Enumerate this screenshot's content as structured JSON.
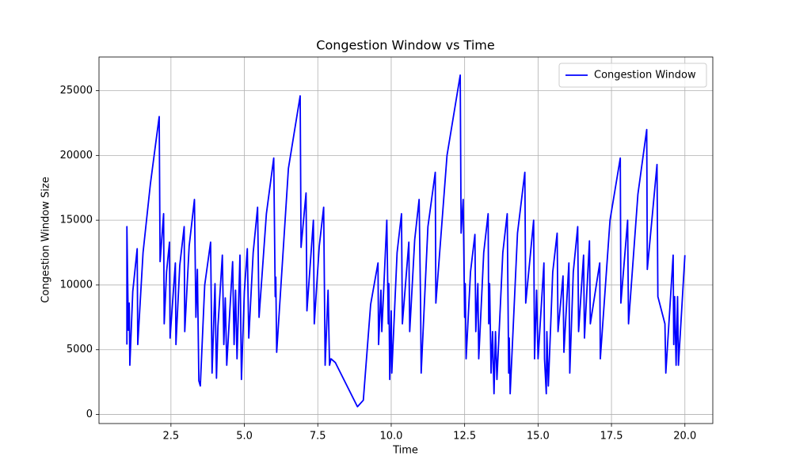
{
  "chart_data": {
    "type": "line",
    "title": "Congestion Window vs Time",
    "x_label": "Time",
    "y_label": "Congestion Window Size",
    "xlim": [
      0.05,
      20.95
    ],
    "ylim": [
      -700,
      27600
    ],
    "xticks": [
      2.5,
      {
        "value": 5,
        "label": "5.0"
      },
      7.5,
      {
        "value": 10,
        "label": "10.0"
      },
      12.5,
      {
        "value": 15,
        "label": "15.0"
      },
      17.5,
      {
        "value": 20,
        "label": "20.0"
      }
    ],
    "yticks": [
      0,
      5000,
      10000,
      15000,
      20000,
      25000
    ],
    "grid": true,
    "legend": "upper right",
    "x": [
      1.0,
      1.0,
      1.05,
      1.08,
      1.1,
      1.2,
      1.35,
      1.37,
      1.55,
      1.8,
      2.1,
      2.13,
      2.25,
      2.27,
      2.35,
      2.45,
      2.47,
      2.65,
      2.67,
      2.8,
      2.95,
      2.97,
      3.12,
      3.3,
      3.35,
      3.4,
      3.45,
      3.5,
      3.65,
      3.85,
      3.9,
      4.0,
      4.05,
      4.1,
      4.25,
      4.3,
      4.35,
      4.4,
      4.6,
      4.65,
      4.7,
      4.75,
      4.85,
      4.9,
      5.0,
      5.1,
      5.15,
      5.3,
      5.45,
      5.5,
      5.75,
      6.0,
      6.05,
      6.07,
      6.1,
      6.5,
      6.9,
      6.93,
      7.1,
      7.13,
      7.35,
      7.38,
      7.55,
      7.7,
      7.75,
      7.85,
      7.9,
      7.95,
      8.1,
      8.85,
      9.05,
      9.3,
      9.55,
      9.57,
      9.65,
      9.68,
      9.85,
      9.9,
      9.92,
      9.95,
      10.0,
      10.02,
      10.2,
      10.35,
      10.38,
      10.6,
      10.63,
      10.8,
      10.95,
      11.0,
      11.02,
      11.25,
      11.5,
      11.52,
      11.9,
      12.35,
      12.38,
      12.45,
      12.5,
      12.52,
      12.55,
      12.7,
      12.85,
      12.88,
      12.95,
      12.98,
      13.15,
      13.3,
      13.32,
      13.35,
      13.4,
      13.45,
      13.5,
      13.55,
      13.6,
      13.8,
      13.95,
      14.0,
      14.02,
      14.05,
      14.3,
      14.55,
      14.58,
      14.85,
      14.88,
      14.95,
      15.0,
      15.2,
      15.22,
      15.28,
      15.3,
      15.35,
      15.5,
      15.65,
      15.68,
      15.85,
      15.88,
      16.05,
      16.08,
      16.2,
      16.35,
      16.38,
      16.55,
      16.58,
      16.75,
      16.78,
      17.1,
      17.12,
      17.45,
      17.8,
      17.82,
      18.05,
      18.08,
      18.4,
      18.7,
      18.72,
      19.05,
      19.08,
      19.32,
      19.35,
      19.6,
      19.62,
      19.65,
      19.7,
      19.75,
      19.78,
      20.0
    ],
    "series": [
      {
        "name": "Congestion Window",
        "color": "#0000ff",
        "values": [
          5400,
          14500,
          6500,
          8600,
          3800,
          9500,
          12800,
          5400,
          12500,
          17800,
          23000,
          11800,
          15500,
          7000,
          11000,
          13300,
          5900,
          11700,
          5400,
          11500,
          14500,
          6400,
          13000,
          16600,
          7500,
          11200,
          2600,
          2200,
          10000,
          13300,
          3200,
          10100,
          2800,
          6800,
          12300,
          5400,
          9000,
          3800,
          11800,
          5400,
          9600,
          4300,
          12300,
          2700,
          9500,
          12800,
          5900,
          12500,
          16000,
          7500,
          15500,
          19800,
          9100,
          10600,
          4800,
          19000,
          24600,
          12900,
          17100,
          8000,
          15000,
          7000,
          13000,
          16000,
          3800,
          9600,
          3800,
          4300,
          4000,
          600,
          1100,
          8500,
          11700,
          5400,
          9600,
          6400,
          15000,
          7000,
          10100,
          2700,
          8000,
          3200,
          12500,
          15500,
          7000,
          13300,
          6400,
          13500,
          16600,
          8600,
          3200,
          14500,
          18700,
          8600,
          20000,
          26200,
          14000,
          16600,
          7500,
          10100,
          4300,
          11000,
          13900,
          6400,
          10100,
          4300,
          12500,
          15500,
          7000,
          10100,
          3200,
          6400,
          1600,
          6400,
          2700,
          12500,
          15500,
          3200,
          5900,
          1600,
          14000,
          18700,
          8600,
          15000,
          4300,
          9600,
          4300,
          11700,
          4300,
          1600,
          6400,
          2200,
          11000,
          14000,
          6400,
          10700,
          4800,
          11700,
          3200,
          11000,
          14500,
          6400,
          12300,
          5900,
          13400,
          7000,
          11700,
          4300,
          15000,
          19800,
          8600,
          15000,
          7000,
          17000,
          22000,
          11200,
          19300,
          9100,
          7000,
          3200,
          12300,
          5400,
          9100,
          3800,
          9100,
          3800,
          12300
        ]
      }
    ]
  }
}
